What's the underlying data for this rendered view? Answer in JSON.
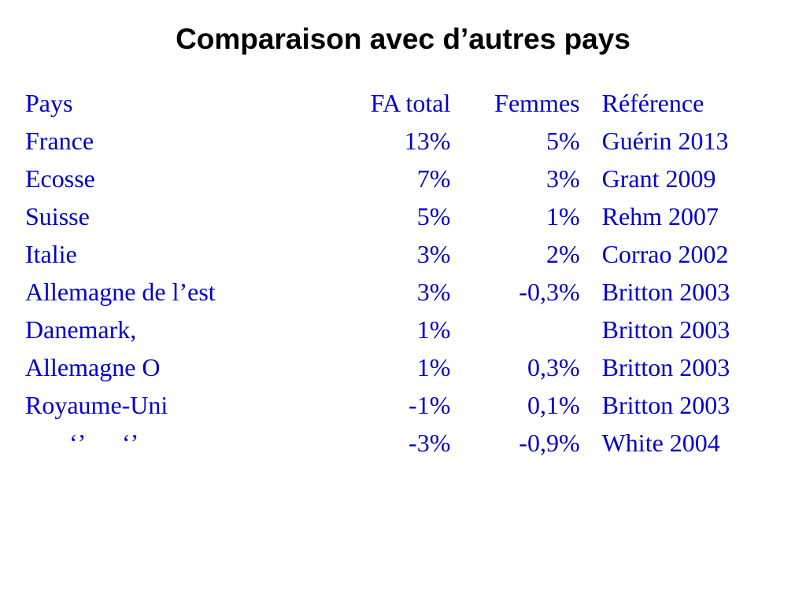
{
  "slide": {
    "title": "Comparaison avec d’autres pays",
    "colors": {
      "title": "#000000",
      "table_text": "#0000cc",
      "background": "#ffffff"
    },
    "table": {
      "headers": {
        "country": "Pays",
        "fa_total": "FA total",
        "women": "Femmes",
        "reference": "Référence"
      },
      "rows": [
        {
          "country": "France",
          "fa_total": "13%",
          "women": "5%",
          "reference": "Guérin 2013"
        },
        {
          "country": "Ecosse",
          "fa_total": "7%",
          "women": "3%",
          "reference": "Grant 2009"
        },
        {
          "country": "Suisse",
          "fa_total": "5%",
          "women": "1%",
          "reference": "Rehm 2007"
        },
        {
          "country": "Italie",
          "fa_total": "3%",
          "women": "2%",
          "reference": "Corrao 2002"
        },
        {
          "country": "Allemagne de l’est",
          "fa_total": "3%",
          "women": "-0,3%",
          "reference": "Britton 2003"
        },
        {
          "country": "Danemark,",
          "fa_total": "1%",
          "women": "",
          "reference": "Britton 2003"
        },
        {
          "country": "Allemagne O",
          "fa_total": "1%",
          "women": "0,3%",
          "reference": "Britton 2003"
        },
        {
          "country": "Royaume-Uni",
          "fa_total": "-1%",
          "women": "0,1%",
          "reference": "Britton 2003"
        },
        {
          "country": "‘’      ‘’",
          "fa_total": "-3%",
          "women": "-0,9%",
          "reference": "White 2004"
        }
      ]
    }
  }
}
